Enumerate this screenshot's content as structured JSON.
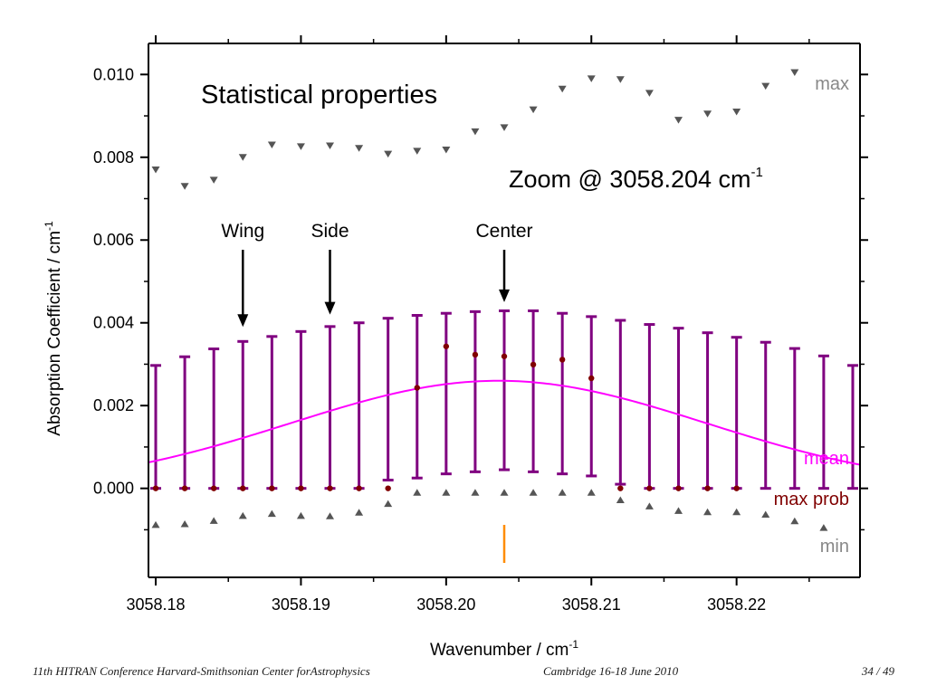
{
  "chart_data": {
    "type": "scatter",
    "xlabel": "Wavenumber / cm",
    "xlabel_sup": "-1",
    "ylabel": "Absorption Coefficient / cm",
    "ylabel_sup": "-1",
    "xlim": [
      3058.1795,
      3058.2285
    ],
    "ylim": [
      -0.00215,
      0.01075
    ],
    "x_ticks": [
      "3058.18",
      "3058.19",
      "3058.20",
      "3058.21",
      "3058.22"
    ],
    "x_tick_values": [
      3058.18,
      3058.19,
      3058.2,
      3058.21,
      3058.22
    ],
    "y_ticks": [
      "0.000",
      "0.002",
      "0.004",
      "0.006",
      "0.008",
      "0.010"
    ],
    "y_tick_values": [
      0.0,
      0.002,
      0.004,
      0.006,
      0.008,
      0.01
    ],
    "grid": false,
    "x": [
      3058.18,
      3058.182,
      3058.184,
      3058.186,
      3058.188,
      3058.19,
      3058.192,
      3058.194,
      3058.196,
      3058.198,
      3058.2,
      3058.202,
      3058.204,
      3058.206,
      3058.208,
      3058.21,
      3058.212,
      3058.214,
      3058.216,
      3058.218,
      3058.22,
      3058.222,
      3058.224,
      3058.226,
      3058.228
    ],
    "series": [
      {
        "name": "max",
        "color": "#555555",
        "marker": "triangle-down",
        "values": [
          0.0077,
          0.0073,
          0.00745,
          0.008,
          0.0083,
          0.00826,
          0.00828,
          0.00822,
          0.00808,
          0.00815,
          0.00818,
          0.00862,
          0.00872,
          0.00915,
          0.00965,
          0.0099,
          0.00988,
          0.00955,
          0.0089,
          0.00905,
          0.0091,
          0.00972,
          0.01005,
          null,
          null
        ]
      },
      {
        "name": "min",
        "color": "#555555",
        "marker": "triangle-up",
        "values": [
          -0.00088,
          -0.00086,
          -0.00078,
          -0.00066,
          -0.00061,
          -0.00066,
          -0.00067,
          -0.00058,
          -0.00037,
          -0.0001,
          -0.0001,
          -0.0001,
          -0.0001,
          -0.0001,
          -0.0001,
          -0.0001,
          -0.00028,
          -0.00043,
          -0.00054,
          -0.00057,
          -0.00057,
          -0.00063,
          -0.00079,
          -0.00095,
          null
        ]
      },
      {
        "name": "max prob",
        "color": "#800000",
        "marker": "circle",
        "values": [
          0.0,
          0.0,
          0.0,
          0.0,
          0.0,
          0.0,
          0.0,
          0.0,
          0.0,
          0.00243,
          0.00343,
          0.00323,
          0.00319,
          0.00299,
          0.00311,
          0.00266,
          0.0,
          0.0,
          0.0,
          0.0,
          0.0,
          null,
          null,
          null,
          null
        ]
      }
    ],
    "error_bars": {
      "color": "#800080",
      "x": [
        3058.18,
        3058.182,
        3058.184,
        3058.186,
        3058.188,
        3058.19,
        3058.192,
        3058.194,
        3058.196,
        3058.198,
        3058.2,
        3058.202,
        3058.204,
        3058.206,
        3058.208,
        3058.21,
        3058.212,
        3058.214,
        3058.216,
        3058.218,
        3058.22,
        3058.222,
        3058.224,
        3058.226,
        3058.228
      ],
      "upper": [
        0.00297,
        0.00318,
        0.00337,
        0.00355,
        0.00367,
        0.00379,
        0.00391,
        0.004,
        0.00411,
        0.00418,
        0.00423,
        0.00427,
        0.00429,
        0.00429,
        0.00423,
        0.00415,
        0.00406,
        0.00396,
        0.00387,
        0.00376,
        0.00365,
        0.00353,
        0.00338,
        0.0032,
        0.00297
      ],
      "lower": [
        0.0,
        0.0,
        0.0,
        0.0,
        0.0,
        0.0,
        0.0,
        0.0,
        0.0002,
        0.00025,
        0.00035,
        0.0004,
        0.00045,
        0.0004,
        0.00035,
        0.0003,
        0.0001,
        0.0,
        0.0,
        0.0,
        0.0,
        0.0,
        0.0,
        0.0,
        0.0
      ]
    },
    "mean_curve": {
      "name": "mean",
      "color": "#ff00ff",
      "center": 3058.2036,
      "peak": 0.0026,
      "sigma": 0.0143
    },
    "center_marker": {
      "x": 3058.204,
      "color": "#ff8c00"
    },
    "legend_labels": [
      {
        "text": "max",
        "color": "#888888"
      },
      {
        "text": "mean",
        "color": "#ff00ff"
      },
      {
        "text": "max prob",
        "color": "#800000"
      },
      {
        "text": "min",
        "color": "#888888"
      }
    ],
    "title": "Statistical properties",
    "annotations": {
      "zoom_text": "Zoom @ 3058.204 cm",
      "zoom_sup": "-1",
      "arrows": [
        {
          "label": "Wing",
          "x": 3058.186,
          "y": 0.0039
        },
        {
          "label": "Side",
          "x": 3058.192,
          "y": 0.0042
        },
        {
          "label": "Center",
          "x": 3058.204,
          "y": 0.0045
        }
      ]
    }
  },
  "footer": {
    "left": "11th HITRAN Conference  Harvard-Smithsonian Center forAstrophysics",
    "center": "Cambridge 16-18 June 2010",
    "right": "34 / 49"
  }
}
